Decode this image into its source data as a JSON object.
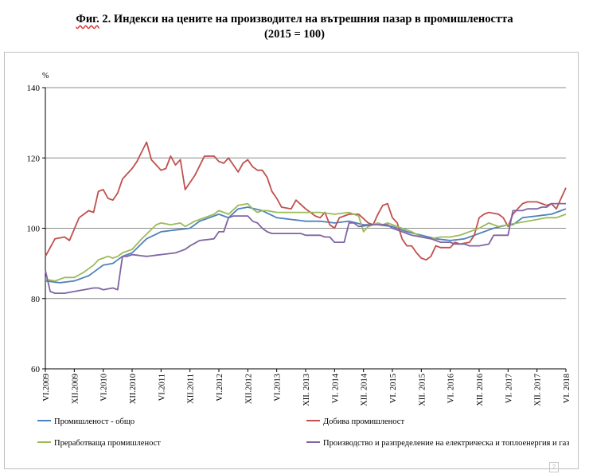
{
  "title": {
    "prefix": "Фиг.",
    "main": " 2. Индекси на цените на производител на вътрешния пазар в промишлеността",
    "subtitle": "(2015 = 100)"
  },
  "page_marker": "2",
  "chart_data": {
    "type": "line",
    "ylabel": "%",
    "ylim": [
      60,
      140
    ],
    "yticks": [
      60,
      80,
      100,
      120,
      140
    ],
    "grid": true,
    "legend_position": "bottom",
    "months_count": 109,
    "x_start": "2009-06",
    "x_end": "2018-06",
    "x_tick_labels": [
      {
        "label": "VI.2009",
        "month_index": 0
      },
      {
        "label": "XII.2009",
        "month_index": 6
      },
      {
        "label": "VI.2010",
        "month_index": 12
      },
      {
        "label": "XII.2010",
        "month_index": 18
      },
      {
        "label": "VI.2011",
        "month_index": 24
      },
      {
        "label": "XII.2011",
        "month_index": 30
      },
      {
        "label": "VI.2012",
        "month_index": 36
      },
      {
        "label": "XII.2012",
        "month_index": 42
      },
      {
        "label": "VI.2013",
        "month_index": 48
      },
      {
        "label": "XII. 2013",
        "month_index": 54
      },
      {
        "label": "VI. 2014",
        "month_index": 60
      },
      {
        "label": "XII. 2014",
        "month_index": 66
      },
      {
        "label": "VI. 2015",
        "month_index": 72
      },
      {
        "label": "XII. 2015",
        "month_index": 78
      },
      {
        "label": "VI. 2016",
        "month_index": 84
      },
      {
        "label": "XII. 2016",
        "month_index": 90
      },
      {
        "label": "VI. 2017",
        "month_index": 96
      },
      {
        "label": "XII. 2017",
        "month_index": 102
      },
      {
        "label": "VI. 2018",
        "month_index": 108
      }
    ],
    "series": [
      {
        "name": "Промишленост - общо",
        "color": "#4F81BD",
        "anchors": [
          [
            0,
            85
          ],
          [
            3,
            84.5
          ],
          [
            6,
            85
          ],
          [
            9,
            86.5
          ],
          [
            12,
            89.5
          ],
          [
            14,
            90
          ],
          [
            16,
            92
          ],
          [
            18,
            93
          ],
          [
            21,
            97
          ],
          [
            24,
            99
          ],
          [
            27,
            99.5
          ],
          [
            30,
            100
          ],
          [
            32,
            102
          ],
          [
            36,
            104
          ],
          [
            38,
            103
          ],
          [
            40,
            105.5
          ],
          [
            42,
            106
          ],
          [
            45,
            105
          ],
          [
            48,
            103
          ],
          [
            51,
            102.5
          ],
          [
            54,
            102
          ],
          [
            57,
            102
          ],
          [
            60,
            101.5
          ],
          [
            63,
            102
          ],
          [
            66,
            101
          ],
          [
            69,
            101
          ],
          [
            72,
            100.5
          ],
          [
            75,
            99
          ],
          [
            78,
            98
          ],
          [
            81,
            97
          ],
          [
            84,
            96.5
          ],
          [
            87,
            97
          ],
          [
            90,
            98.5
          ],
          [
            93,
            100
          ],
          [
            96,
            101
          ],
          [
            97,
            101
          ],
          [
            99,
            103
          ],
          [
            102,
            103.5
          ],
          [
            105,
            104
          ],
          [
            108,
            105.5
          ]
        ]
      },
      {
        "name": "Добива промишленост",
        "color": "#C0504D",
        "anchors": [
          [
            0,
            92
          ],
          [
            2,
            97
          ],
          [
            4,
            97.5
          ],
          [
            5,
            96.5
          ],
          [
            7,
            103
          ],
          [
            9,
            105
          ],
          [
            10,
            104.5
          ],
          [
            11,
            110.5
          ],
          [
            12,
            111
          ],
          [
            13,
            108.5
          ],
          [
            14,
            108
          ],
          [
            15,
            110
          ],
          [
            16,
            114
          ],
          [
            18,
            117
          ],
          [
            19,
            119
          ],
          [
            21,
            124.5
          ],
          [
            22,
            119.5
          ],
          [
            23,
            118
          ],
          [
            24,
            116.5
          ],
          [
            25,
            117
          ],
          [
            26,
            120.5
          ],
          [
            27,
            118
          ],
          [
            28,
            119.5
          ],
          [
            29,
            111
          ],
          [
            30,
            113
          ],
          [
            31,
            115
          ],
          [
            33,
            120.5
          ],
          [
            35,
            120.5
          ],
          [
            36,
            119
          ],
          [
            37,
            118.5
          ],
          [
            38,
            120
          ],
          [
            40,
            116
          ],
          [
            41,
            118.5
          ],
          [
            42,
            119.5
          ],
          [
            43,
            117.5
          ],
          [
            44,
            116.5
          ],
          [
            45,
            116.5
          ],
          [
            46,
            114.5
          ],
          [
            47,
            110.5
          ],
          [
            48,
            108.5
          ],
          [
            49,
            106
          ],
          [
            51,
            105.5
          ],
          [
            52,
            108
          ],
          [
            54,
            105.5
          ],
          [
            56,
            103.5
          ],
          [
            57,
            103
          ],
          [
            58,
            104.5
          ],
          [
            59,
            101
          ],
          [
            60,
            100
          ],
          [
            61,
            103
          ],
          [
            63,
            104
          ],
          [
            65,
            104
          ],
          [
            67,
            101.5
          ],
          [
            68,
            101
          ],
          [
            69,
            104
          ],
          [
            70,
            106.5
          ],
          [
            71,
            107
          ],
          [
            72,
            103
          ],
          [
            73,
            101.5
          ],
          [
            74,
            97
          ],
          [
            75,
            95
          ],
          [
            76,
            95
          ],
          [
            77,
            93
          ],
          [
            78,
            91.5
          ],
          [
            79,
            91
          ],
          [
            80,
            92
          ],
          [
            81,
            95
          ],
          [
            82,
            94.5
          ],
          [
            84,
            94.5
          ],
          [
            85,
            96
          ],
          [
            86,
            95.5
          ],
          [
            88,
            96
          ],
          [
            89,
            98
          ],
          [
            90,
            103
          ],
          [
            91,
            104
          ],
          [
            92,
            104.5
          ],
          [
            94,
            104
          ],
          [
            95,
            103
          ],
          [
            96,
            100.5
          ],
          [
            97,
            104
          ],
          [
            99,
            107
          ],
          [
            100,
            107.5
          ],
          [
            102,
            107.5
          ],
          [
            103,
            107
          ],
          [
            104,
            106.5
          ],
          [
            105,
            107
          ],
          [
            106,
            105.5
          ],
          [
            108,
            111.5
          ]
        ]
      },
      {
        "name": "Преработваща промишленост",
        "color": "#9BBB59",
        "anchors": [
          [
            0,
            85.5
          ],
          [
            2,
            85
          ],
          [
            4,
            86
          ],
          [
            6,
            86
          ],
          [
            8,
            87.5
          ],
          [
            10,
            89.5
          ],
          [
            11,
            91
          ],
          [
            13,
            92
          ],
          [
            14,
            91.5
          ],
          [
            15,
            92
          ],
          [
            16,
            93
          ],
          [
            18,
            94
          ],
          [
            20,
            97
          ],
          [
            23,
            101
          ],
          [
            24,
            101.5
          ],
          [
            26,
            101
          ],
          [
            28,
            101.5
          ],
          [
            29,
            100.5
          ],
          [
            31,
            102
          ],
          [
            33,
            103
          ],
          [
            35,
            104
          ],
          [
            36,
            105
          ],
          [
            38,
            104
          ],
          [
            40,
            106.5
          ],
          [
            42,
            107
          ],
          [
            43,
            105.5
          ],
          [
            44,
            104.5
          ],
          [
            45,
            105
          ],
          [
            46,
            105
          ],
          [
            48,
            104.5
          ],
          [
            51,
            104.5
          ],
          [
            54,
            104.5
          ],
          [
            57,
            104.5
          ],
          [
            60,
            104
          ],
          [
            63,
            104.5
          ],
          [
            65,
            103.5
          ],
          [
            66,
            99
          ],
          [
            67,
            100.5
          ],
          [
            69,
            101.5
          ],
          [
            70,
            101
          ],
          [
            71,
            101.5
          ],
          [
            72,
            101
          ],
          [
            74,
            100
          ],
          [
            76,
            99
          ],
          [
            78,
            97.5
          ],
          [
            80,
            97
          ],
          [
            82,
            97.5
          ],
          [
            84,
            97.5
          ],
          [
            86,
            98
          ],
          [
            88,
            99
          ],
          [
            90,
            100
          ],
          [
            92,
            101.5
          ],
          [
            94,
            100.5
          ],
          [
            96,
            101
          ],
          [
            98,
            101.5
          ],
          [
            100,
            102
          ],
          [
            102,
            102.5
          ],
          [
            104,
            103
          ],
          [
            106,
            103
          ],
          [
            108,
            104
          ]
        ]
      },
      {
        "name": "Производство и разпределение на електрическа и топлоенергия и газ",
        "color": "#8064A2",
        "anchors": [
          [
            0,
            88
          ],
          [
            1,
            82
          ],
          [
            2,
            81.5
          ],
          [
            3,
            81.5
          ],
          [
            4,
            81.5
          ],
          [
            6,
            82
          ],
          [
            8,
            82.5
          ],
          [
            10,
            83
          ],
          [
            11,
            83
          ],
          [
            12,
            82.5
          ],
          [
            14,
            83
          ],
          [
            15,
            82.5
          ],
          [
            16,
            92
          ],
          [
            17,
            92
          ],
          [
            18,
            92.5
          ],
          [
            21,
            92
          ],
          [
            24,
            92.5
          ],
          [
            27,
            93
          ],
          [
            29,
            94
          ],
          [
            30,
            95
          ],
          [
            32,
            96.5
          ],
          [
            35,
            97
          ],
          [
            36,
            99
          ],
          [
            37,
            99
          ],
          [
            38,
            103
          ],
          [
            39,
            103.5
          ],
          [
            42,
            103.5
          ],
          [
            43,
            102
          ],
          [
            44,
            101.5
          ],
          [
            45,
            100
          ],
          [
            46,
            99
          ],
          [
            47,
            98.5
          ],
          [
            50,
            98.5
          ],
          [
            53,
            98.5
          ],
          [
            54,
            98
          ],
          [
            57,
            98
          ],
          [
            58,
            97.5
          ],
          [
            59,
            97.5
          ],
          [
            60,
            96
          ],
          [
            62,
            96
          ],
          [
            63,
            101.5
          ],
          [
            64,
            101.5
          ],
          [
            65,
            100.5
          ],
          [
            68,
            101
          ],
          [
            71,
            101
          ],
          [
            72,
            100
          ],
          [
            74,
            99
          ],
          [
            76,
            98
          ],
          [
            78,
            97.5
          ],
          [
            80,
            97
          ],
          [
            82,
            96
          ],
          [
            83,
            96
          ],
          [
            84,
            96
          ],
          [
            85,
            95.5
          ],
          [
            87,
            95.5
          ],
          [
            88,
            95
          ],
          [
            89,
            95
          ],
          [
            90,
            95
          ],
          [
            92,
            95.5
          ],
          [
            93,
            98
          ],
          [
            95,
            98
          ],
          [
            96,
            98
          ],
          [
            97,
            105
          ],
          [
            99,
            105
          ],
          [
            100,
            105.5
          ],
          [
            102,
            105.5
          ],
          [
            103,
            106
          ],
          [
            104,
            106
          ],
          [
            105,
            107
          ],
          [
            106,
            107
          ],
          [
            108,
            107
          ]
        ]
      }
    ]
  }
}
